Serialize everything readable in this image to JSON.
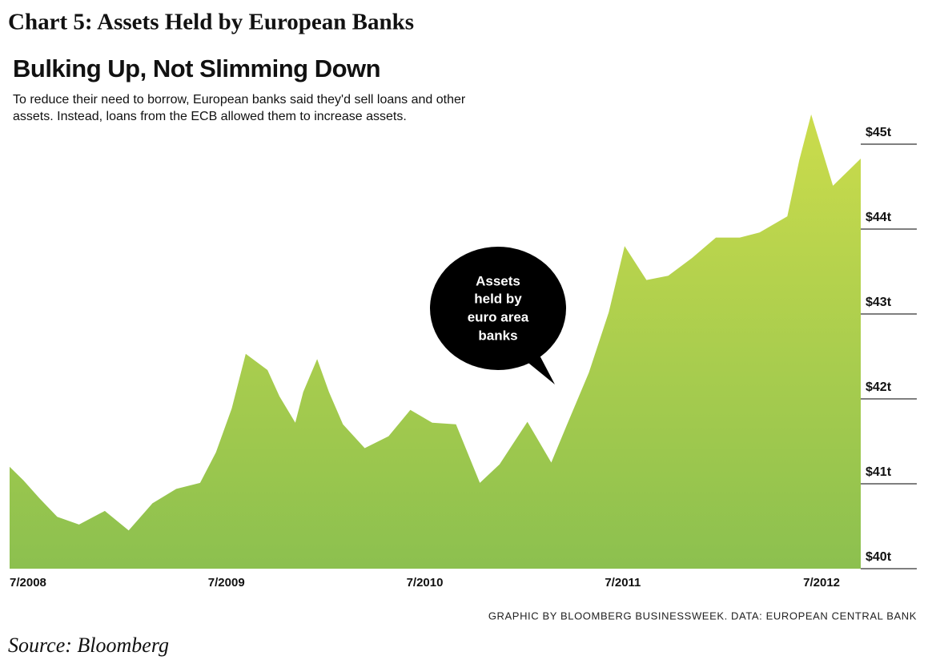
{
  "header": "Chart 5:  Assets Held by European Banks",
  "source": "Source: Bloomberg",
  "chart_data": {
    "type": "area",
    "title": "Bulking Up, Not Slimming Down",
    "subtitle": [
      "To reduce their need to borrow, European banks said they'd sell loans and other",
      "assets. Instead, loans from the ECB allowed them to increase assets."
    ],
    "annotation": [
      "Assets",
      "held by",
      "euro area",
      "banks"
    ],
    "credit": "GRAPHIC BY BLOOMBERG BUSINESSWEEK. DATA: EUROPEAN CENTRAL BANK",
    "x": [
      2008.5,
      2008.57,
      2008.65,
      2008.74,
      2008.85,
      2008.98,
      2009.1,
      2009.22,
      2009.34,
      2009.46,
      2009.54,
      2009.62,
      2009.69,
      2009.8,
      2009.86,
      2009.94,
      2009.98,
      2010.05,
      2010.11,
      2010.18,
      2010.29,
      2010.41,
      2010.52,
      2010.63,
      2010.75,
      2010.87,
      2010.97,
      2011.11,
      2011.23,
      2011.31,
      2011.42,
      2011.52,
      2011.6,
      2011.71,
      2011.82,
      2011.94,
      2012.06,
      2012.18,
      2012.28,
      2012.42,
      2012.48,
      2012.54,
      2012.65,
      2012.79
    ],
    "values": [
      41.2,
      41.04,
      40.83,
      40.61,
      40.52,
      40.68,
      40.45,
      40.77,
      40.94,
      41.01,
      41.37,
      41.89,
      42.53,
      42.34,
      42.03,
      41.72,
      42.08,
      42.47,
      42.08,
      41.7,
      41.42,
      41.56,
      41.87,
      41.72,
      41.7,
      41.01,
      41.23,
      41.73,
      41.25,
      41.7,
      42.31,
      43.02,
      43.8,
      43.4,
      43.45,
      43.66,
      43.9,
      43.9,
      43.96,
      44.15,
      44.81,
      45.35,
      44.51,
      44.83
    ],
    "xlim": [
      2008.5,
      2012.79
    ],
    "xticks": [
      {
        "value": 2008.5,
        "label": "7/2008"
      },
      {
        "value": 2009.5,
        "label": "7/2009"
      },
      {
        "value": 2010.5,
        "label": "7/2010"
      },
      {
        "value": 2011.5,
        "label": "7/2011"
      },
      {
        "value": 2012.5,
        "label": "7/2012"
      }
    ],
    "ylim": [
      40,
      45.5
    ],
    "yticks": [
      {
        "value": 40,
        "label": "$40t"
      },
      {
        "value": 41,
        "label": "$41t"
      },
      {
        "value": 42,
        "label": "$42t"
      },
      {
        "value": 43,
        "label": "$43t"
      },
      {
        "value": 44,
        "label": "$44t"
      },
      {
        "value": 45,
        "label": "$45t"
      }
    ]
  }
}
